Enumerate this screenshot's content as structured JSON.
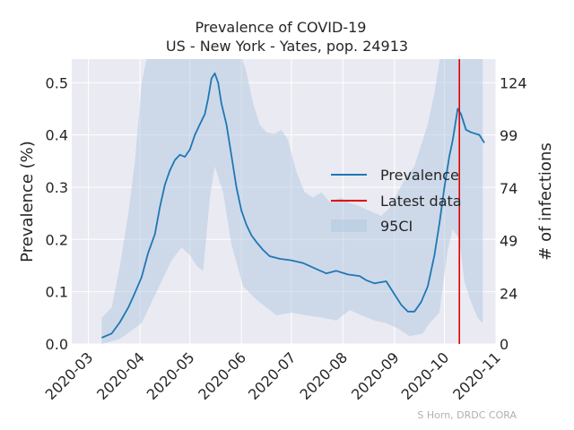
{
  "chart_data": {
    "type": "line",
    "title": "Prevalence of COVID-19",
    "subtitle": "US - New York - Yates, pop. 24913",
    "xlabel": "",
    "ylabel": "Prevalence (%)",
    "y2label": "# of infections",
    "credit": "S Horn, DRDC CORA",
    "xlim": [
      "2020-02-20",
      "2020-11-01"
    ],
    "ylim": [
      0,
      0.545
    ],
    "x_ticks": [
      "2020-03-01",
      "2020-04-01",
      "2020-05-01",
      "2020-06-01",
      "2020-07-01",
      "2020-08-01",
      "2020-09-01",
      "2020-10-01",
      "2020-11-01"
    ],
    "x_tick_labels": [
      "2020-03",
      "2020-04",
      "2020-05",
      "2020-06",
      "2020-07",
      "2020-08",
      "2020-09",
      "2020-10",
      "2020-11"
    ],
    "y_ticks": [
      0.0,
      0.1,
      0.2,
      0.3,
      0.4,
      0.5
    ],
    "y_tick_labels": [
      "0.0",
      "0.1",
      "0.2",
      "0.3",
      "0.4",
      "0.5"
    ],
    "y2_ticks": [
      0,
      24,
      49,
      74,
      99,
      124
    ],
    "y2_tick_labels": [
      "0",
      "24",
      "49",
      "74",
      "99",
      "124"
    ],
    "grid": true,
    "legend": {
      "placement": "center-right",
      "entries": [
        "Prevalence",
        "Latest data",
        "95CI"
      ]
    },
    "colors": {
      "background": "#eaeaf2",
      "grid": "#ffffff",
      "prevalence": "#1f77b4",
      "latest": "#e00000",
      "ci_fill": "#b0c8e0"
    },
    "latest_data_date": "2020-10-10",
    "series": [
      {
        "name": "Prevalence",
        "points": [
          [
            "2020-03-09",
            0.012
          ],
          [
            "2020-03-15",
            0.02
          ],
          [
            "2020-03-20",
            0.042
          ],
          [
            "2020-03-25",
            0.07
          ],
          [
            "2020-03-29",
            0.098
          ],
          [
            "2020-04-02",
            0.128
          ],
          [
            "2020-04-06",
            0.175
          ],
          [
            "2020-04-10",
            0.21
          ],
          [
            "2020-04-13",
            0.262
          ],
          [
            "2020-04-16",
            0.305
          ],
          [
            "2020-04-19",
            0.332
          ],
          [
            "2020-04-22",
            0.352
          ],
          [
            "2020-04-25",
            0.362
          ],
          [
            "2020-04-28",
            0.358
          ],
          [
            "2020-05-01",
            0.372
          ],
          [
            "2020-05-04",
            0.4
          ],
          [
            "2020-05-07",
            0.42
          ],
          [
            "2020-05-10",
            0.44
          ],
          [
            "2020-05-12",
            0.47
          ],
          [
            "2020-05-14",
            0.508
          ],
          [
            "2020-05-16",
            0.518
          ],
          [
            "2020-05-18",
            0.5
          ],
          [
            "2020-05-20",
            0.46
          ],
          [
            "2020-05-23",
            0.42
          ],
          [
            "2020-05-26",
            0.36
          ],
          [
            "2020-05-29",
            0.3
          ],
          [
            "2020-06-01",
            0.255
          ],
          [
            "2020-06-04",
            0.228
          ],
          [
            "2020-06-07",
            0.208
          ],
          [
            "2020-06-10",
            0.195
          ],
          [
            "2020-06-14",
            0.18
          ],
          [
            "2020-06-18",
            0.168
          ],
          [
            "2020-06-24",
            0.163
          ],
          [
            "2020-07-01",
            0.16
          ],
          [
            "2020-07-08",
            0.155
          ],
          [
            "2020-07-15",
            0.145
          ],
          [
            "2020-07-22",
            0.135
          ],
          [
            "2020-07-28",
            0.14
          ],
          [
            "2020-08-04",
            0.133
          ],
          [
            "2020-08-11",
            0.13
          ],
          [
            "2020-08-15",
            0.122
          ],
          [
            "2020-08-20",
            0.116
          ],
          [
            "2020-08-27",
            0.12
          ],
          [
            "2020-09-01",
            0.095
          ],
          [
            "2020-09-05",
            0.075
          ],
          [
            "2020-09-09",
            0.062
          ],
          [
            "2020-09-13",
            0.062
          ],
          [
            "2020-09-17",
            0.08
          ],
          [
            "2020-09-21",
            0.11
          ],
          [
            "2020-09-25",
            0.17
          ],
          [
            "2020-09-28",
            0.23
          ],
          [
            "2020-10-01",
            0.3
          ],
          [
            "2020-10-04",
            0.36
          ],
          [
            "2020-10-06",
            0.39
          ],
          [
            "2020-10-08",
            0.43
          ],
          [
            "2020-10-09",
            0.45
          ],
          [
            "2020-10-11",
            0.44
          ],
          [
            "2020-10-14",
            0.41
          ],
          [
            "2020-10-17",
            0.405
          ],
          [
            "2020-10-22",
            0.4
          ],
          [
            "2020-10-25",
            0.385
          ]
        ]
      },
      {
        "name": "95CI",
        "upper": [
          [
            "2020-03-09",
            0.05
          ],
          [
            "2020-03-15",
            0.07
          ],
          [
            "2020-03-20",
            0.15
          ],
          [
            "2020-03-25",
            0.25
          ],
          [
            "2020-03-29",
            0.35
          ],
          [
            "2020-04-02",
            0.5
          ],
          [
            "2020-04-06",
            0.56
          ],
          [
            "2020-05-24",
            0.56
          ],
          [
            "2020-05-31",
            0.56
          ],
          [
            "2020-06-04",
            0.52
          ],
          [
            "2020-06-08",
            0.46
          ],
          [
            "2020-06-12",
            0.42
          ],
          [
            "2020-06-16",
            0.405
          ],
          [
            "2020-06-21",
            0.402
          ],
          [
            "2020-06-25",
            0.41
          ],
          [
            "2020-06-29",
            0.39
          ],
          [
            "2020-07-04",
            0.33
          ],
          [
            "2020-07-09",
            0.29
          ],
          [
            "2020-07-14",
            0.28
          ],
          [
            "2020-07-19",
            0.29
          ],
          [
            "2020-07-24",
            0.272
          ],
          [
            "2020-07-31",
            0.28
          ],
          [
            "2020-08-05",
            0.27
          ],
          [
            "2020-08-10",
            0.265
          ],
          [
            "2020-08-17",
            0.255
          ],
          [
            "2020-08-24",
            0.245
          ],
          [
            "2020-08-29",
            0.26
          ],
          [
            "2020-09-03",
            0.29
          ],
          [
            "2020-09-08",
            0.32
          ],
          [
            "2020-09-13",
            0.34
          ],
          [
            "2020-09-17",
            0.38
          ],
          [
            "2020-09-21",
            0.42
          ],
          [
            "2020-09-25",
            0.48
          ],
          [
            "2020-09-29",
            0.56
          ],
          [
            "2020-10-24",
            0.56
          ]
        ],
        "lower": [
          [
            "2020-03-09",
            0.0
          ],
          [
            "2020-03-20",
            0.01
          ],
          [
            "2020-04-02",
            0.04
          ],
          [
            "2020-04-08",
            0.08
          ],
          [
            "2020-04-14",
            0.12
          ],
          [
            "2020-04-20",
            0.16
          ],
          [
            "2020-04-26",
            0.185
          ],
          [
            "2020-05-01",
            0.17
          ],
          [
            "2020-05-05",
            0.15
          ],
          [
            "2020-05-09",
            0.14
          ],
          [
            "2020-05-13",
            0.28
          ],
          [
            "2020-05-16",
            0.34
          ],
          [
            "2020-05-21",
            0.29
          ],
          [
            "2020-05-26",
            0.19
          ],
          [
            "2020-06-02",
            0.11
          ],
          [
            "2020-06-10",
            0.085
          ],
          [
            "2020-06-18",
            0.065
          ],
          [
            "2020-06-22",
            0.055
          ],
          [
            "2020-07-01",
            0.06
          ],
          [
            "2020-07-10",
            0.055
          ],
          [
            "2020-07-20",
            0.05
          ],
          [
            "2020-07-28",
            0.045
          ],
          [
            "2020-08-05",
            0.065
          ],
          [
            "2020-08-12",
            0.055
          ],
          [
            "2020-08-20",
            0.045
          ],
          [
            "2020-08-27",
            0.04
          ],
          [
            "2020-09-03",
            0.03
          ],
          [
            "2020-09-10",
            0.015
          ],
          [
            "2020-09-18",
            0.02
          ],
          [
            "2020-09-22",
            0.04
          ],
          [
            "2020-09-28",
            0.06
          ],
          [
            "2020-10-03",
            0.18
          ],
          [
            "2020-10-06",
            0.22
          ],
          [
            "2020-10-10",
            0.2
          ],
          [
            "2020-10-13",
            0.12
          ],
          [
            "2020-10-17",
            0.08
          ],
          [
            "2020-10-21",
            0.05
          ],
          [
            "2020-10-24",
            0.04
          ]
        ]
      }
    ]
  }
}
